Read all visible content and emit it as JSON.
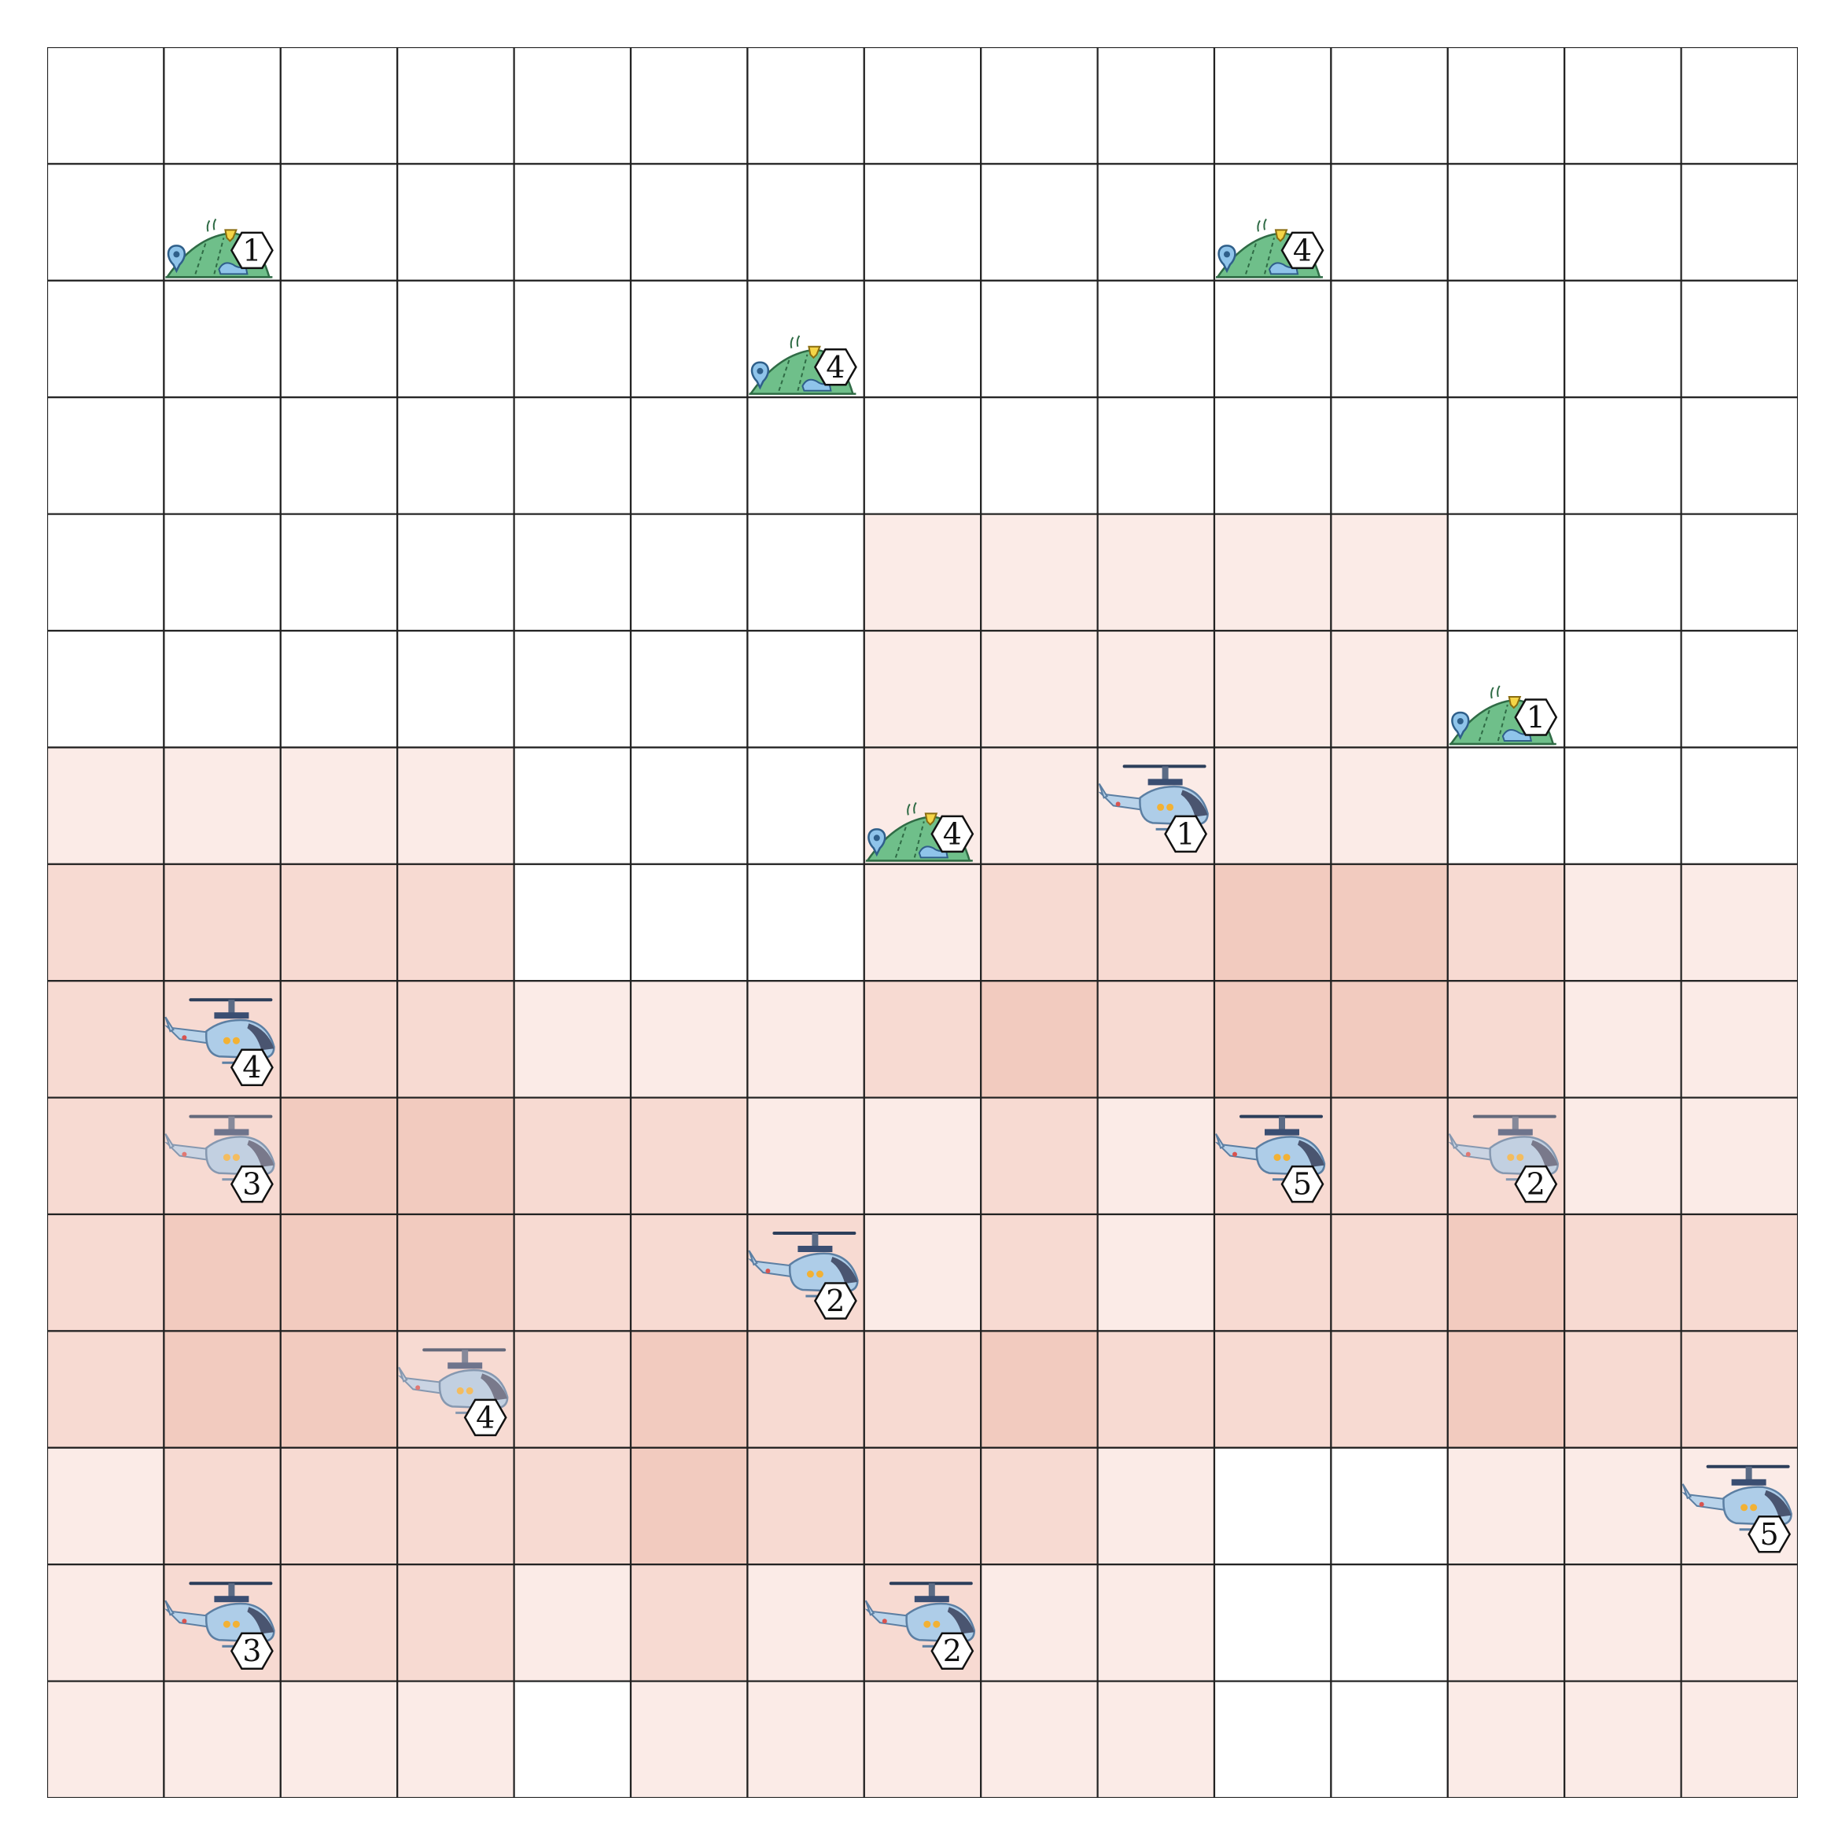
{
  "grid": {
    "rows": 15,
    "cols": 15,
    "colors": {
      "0": "#ffffff",
      "1": "#fbebe7",
      "2": "#f7dad2",
      "3": "#f2cbbf"
    },
    "shading": [
      [
        0,
        0,
        0,
        0,
        0,
        0,
        0,
        0,
        0,
        0,
        0,
        0,
        0,
        0,
        0
      ],
      [
        0,
        0,
        0,
        0,
        0,
        0,
        0,
        0,
        0,
        0,
        0,
        0,
        0,
        0,
        0
      ],
      [
        0,
        0,
        0,
        0,
        0,
        0,
        0,
        0,
        0,
        0,
        0,
        0,
        0,
        0,
        0
      ],
      [
        0,
        0,
        0,
        0,
        0,
        0,
        0,
        0,
        0,
        0,
        0,
        0,
        0,
        0,
        0
      ],
      [
        0,
        0,
        0,
        0,
        0,
        0,
        0,
        1,
        1,
        1,
        1,
        1,
        0,
        0,
        0
      ],
      [
        0,
        0,
        0,
        0,
        0,
        0,
        0,
        1,
        1,
        1,
        1,
        1,
        0,
        0,
        0
      ],
      [
        1,
        1,
        1,
        1,
        0,
        0,
        0,
        1,
        1,
        1,
        1,
        1,
        0,
        0,
        0
      ],
      [
        2,
        2,
        2,
        2,
        0,
        0,
        0,
        1,
        2,
        2,
        3,
        3,
        2,
        1,
        1
      ],
      [
        2,
        2,
        2,
        2,
        1,
        1,
        1,
        2,
        3,
        2,
        3,
        3,
        2,
        1,
        1
      ],
      [
        2,
        2,
        3,
        3,
        2,
        2,
        1,
        1,
        2,
        1,
        2,
        2,
        2,
        1,
        1
      ],
      [
        2,
        3,
        3,
        3,
        2,
        2,
        2,
        1,
        2,
        1,
        2,
        2,
        3,
        2,
        2
      ],
      [
        2,
        3,
        3,
        2,
        2,
        3,
        2,
        2,
        3,
        2,
        2,
        2,
        3,
        2,
        2
      ],
      [
        1,
        2,
        2,
        2,
        2,
        3,
        2,
        2,
        2,
        1,
        0,
        0,
        1,
        1,
        1
      ],
      [
        1,
        2,
        2,
        2,
        1,
        2,
        1,
        2,
        1,
        1,
        0,
        0,
        1,
        1,
        1
      ],
      [
        1,
        1,
        1,
        1,
        0,
        1,
        1,
        1,
        1,
        1,
        0,
        0,
        1,
        1,
        1
      ]
    ]
  },
  "towns": [
    {
      "row": 1,
      "col": 1,
      "level": "1"
    },
    {
      "row": 1,
      "col": 10,
      "level": "4"
    },
    {
      "row": 2,
      "col": 6,
      "level": "4"
    },
    {
      "row": 5,
      "col": 12,
      "level": "1"
    },
    {
      "row": 6,
      "col": 7,
      "level": "4"
    }
  ],
  "helicopters": [
    {
      "row": 6,
      "col": 9,
      "level": "1",
      "faded": false
    },
    {
      "row": 8,
      "col": 1,
      "level": "4",
      "faded": false
    },
    {
      "row": 9,
      "col": 1,
      "level": "3",
      "faded": true
    },
    {
      "row": 9,
      "col": 10,
      "level": "5",
      "faded": false
    },
    {
      "row": 9,
      "col": 12,
      "level": "2",
      "faded": true
    },
    {
      "row": 10,
      "col": 6,
      "level": "2",
      "faded": false
    },
    {
      "row": 11,
      "col": 3,
      "level": "4",
      "faded": true
    },
    {
      "row": 12,
      "col": 14,
      "level": "5",
      "faded": false
    },
    {
      "row": 13,
      "col": 1,
      "level": "3",
      "faded": false
    },
    {
      "row": 13,
      "col": 7,
      "level": "2",
      "faded": false
    }
  ]
}
